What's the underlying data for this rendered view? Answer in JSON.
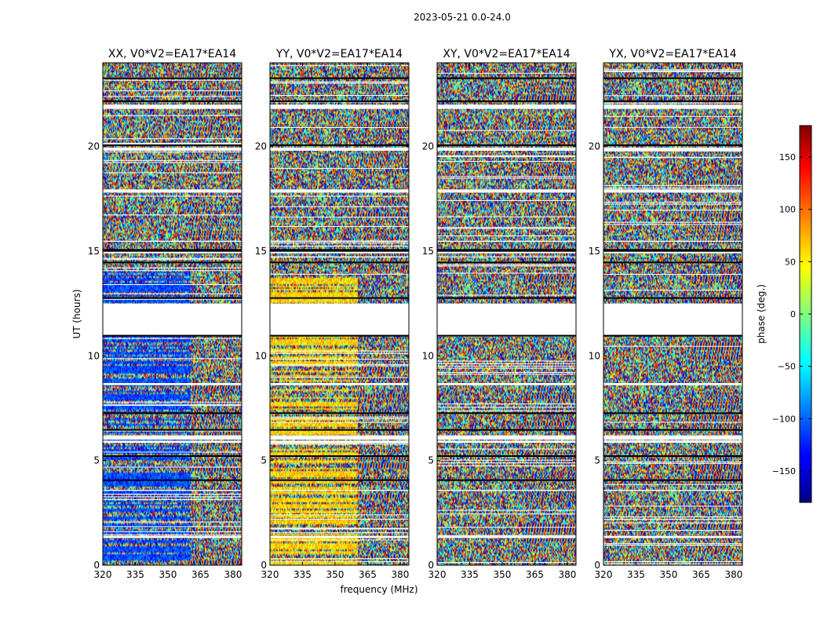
{
  "figure": {
    "suptitle": "2023-05-21 0.0-24.0",
    "xlabel": "frequency (MHz)",
    "ylabel": "UT (hours)"
  },
  "chart_data": {
    "type": "heatmap",
    "colormap": "jet",
    "xlim": [
      320,
      384
    ],
    "ylim": [
      0,
      24
    ],
    "x_ticks": [
      320,
      335,
      350,
      365,
      380
    ],
    "x_tick_labels": [
      "320",
      "335",
      "350",
      "365",
      "380"
    ],
    "y_ticks": [
      0,
      5,
      10,
      15,
      20
    ],
    "y_tick_labels": [
      "0",
      "5",
      "10",
      "15",
      "20"
    ],
    "panels": [
      {
        "title": "XX, V0*V2=EA17*EA14",
        "bias": -110
      },
      {
        "title": "YY, V0*V2=EA17*EA14",
        "bias": 60
      },
      {
        "title": "XY, V0*V2=EA17*EA14",
        "bias": 0
      },
      {
        "title": "YX, V0*V2=EA17*EA14",
        "bias": 0
      }
    ],
    "blank_gaps_ut": [
      [
        11.0,
        12.5
      ],
      [
        6.0,
        6.2
      ],
      [
        1.3,
        1.4
      ],
      [
        17.8,
        17.95
      ],
      [
        19.8,
        19.95
      ],
      [
        21.8,
        22.0
      ],
      [
        5.85,
        5.95
      ],
      [
        14.9,
        15.0
      ],
      [
        15.45,
        15.5
      ],
      [
        8.6,
        8.7
      ],
      [
        3.55,
        3.6
      ]
    ],
    "black_rows_ut": [
      15.05,
      15.1,
      5.25,
      11.0,
      23.3,
      22.2,
      20.1,
      14.5,
      12.8,
      7.3,
      6.5,
      4.1
    ],
    "colorbar": {
      "label": "phase (deg.)",
      "range": [
        -180,
        180
      ],
      "ticks": [
        -150,
        -100,
        -50,
        0,
        50,
        100,
        150
      ],
      "tick_labels": [
        "−150",
        "−100",
        "−50",
        "0",
        "50",
        "100",
        "150"
      ]
    }
  }
}
